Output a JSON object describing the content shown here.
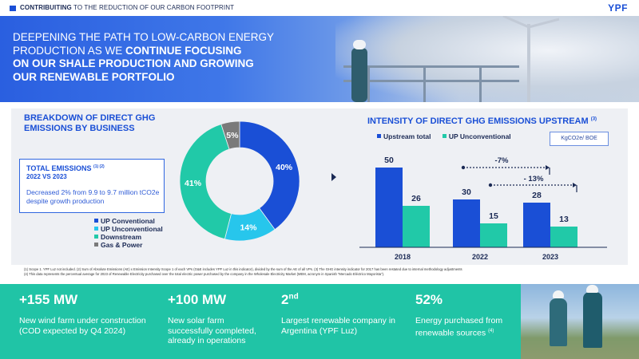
{
  "header": {
    "title_bold": "CONTRIBUITING",
    "title_rest": " TO THE REDUCTION OF OUR CARBON FOOTPRINT",
    "logo": "YPF"
  },
  "hero": {
    "line_a": "DEEPENING THE PATH TO LOW-CARBON ENERGY",
    "line_b": "PRODUCTION AS WE ",
    "line_b_bold": "CONTINUE FOCUSING",
    "line_c_bold": "ON OUR SHALE PRODUCTION AND GROWING",
    "line_d_bold": "OUR RENEWABLE PORTFOLIO"
  },
  "breakdown": {
    "title": "BREAKDOWN OF DIRECT GHG EMISSIONS BY BUSINESS",
    "totals_title": "TOTAL EMISSIONS",
    "totals_sup": "(1) (2)",
    "totals_period": "2022 VS 2023",
    "totals_desc": "Decreased 2% from 9.9 to 9.7 million tCO2e despite growth production",
    "legend": [
      {
        "label": "UP Conventional",
        "color": "#1a4fd6"
      },
      {
        "label": "UP Unconventional",
        "color": "#27c6ec"
      },
      {
        "label": "Downstream",
        "color": "#21c9a8"
      },
      {
        "label": "Gas & Power",
        "color": "#7a7a7a"
      }
    ]
  },
  "chart_data": [
    {
      "type": "pie",
      "categories": [
        "UP Conventional",
        "UP Unconventional",
        "Downstream",
        "Gas & Power"
      ],
      "values": [
        40,
        14,
        41,
        5
      ],
      "labels": [
        "40%",
        "14%",
        "41%",
        "5%"
      ],
      "colors": [
        "#1a4fd6",
        "#27c6ec",
        "#21c9a8",
        "#7a7a7a"
      ]
    },
    {
      "type": "bar",
      "title": "INTENSITY OF DIRECT GHG EMISSIONS UPSTREAM",
      "title_sup": "(3)",
      "unit_label": "KgCO2e/ BOE",
      "categories": [
        "2018",
        "2022",
        "2023"
      ],
      "series": [
        {
          "name": "Upstream total",
          "values": [
            50,
            30,
            28
          ],
          "color": "#1a4fd6"
        },
        {
          "name": "UP Unconventional",
          "values": [
            26,
            15,
            13
          ],
          "color": "#21c9a8"
        }
      ],
      "annotations": [
        "-7%",
        "- 13%"
      ],
      "ylim": [
        0,
        55
      ]
    }
  ],
  "footnote": {
    "line1": "(1) Scope 1. YPF Luz not included. (2) Sum of Absolute Emissions (AE) x Emission Intensity Scope 1 of each VPs (G&E includes YPF Luz in this indicator), divided by the sum of the AE of all VPs. (3) The GHG intensity indicator for 2017 has been restated due to internal methodology adjustments",
    "line2": "(4) This data represents the percentual average for 2023 of Renewable Electricity purchased over the total electric power purchased by the company in the Wholesale Electricity Market (MEM, acronym in Spanish “Mercado Eléctrico Mayorista”)."
  },
  "stats": [
    {
      "big": "+155 MW",
      "desc": "New wind farm under construction (COD expected by Q4 2024)"
    },
    {
      "big": "+100 MW",
      "desc": "New solar farm successfully completed, already in operations"
    },
    {
      "big": "2",
      "big_sup": "nd",
      "desc": "Largest renewable company in Argentina (YPF Luz)"
    },
    {
      "big": "52%",
      "desc": "Energy purchased from renewable sources",
      "desc_sup": "(4)"
    }
  ]
}
